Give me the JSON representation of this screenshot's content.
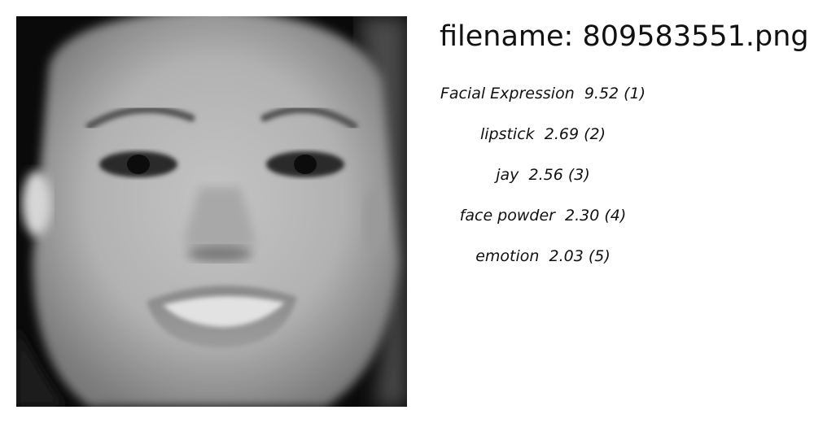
{
  "image": {
    "alt": "grayscale close-up photo of a smiling face"
  },
  "header": {
    "filename_label": "filename: 809583551.png"
  },
  "labels": [
    {
      "text": "Facial Expression  9.52 (1)"
    },
    {
      "text": "lipstick  2.69 (2)"
    },
    {
      "text": "jay  2.56 (3)"
    },
    {
      "text": "face powder  2.30 (4)"
    },
    {
      "text": "emotion  2.03 (5)"
    }
  ]
}
